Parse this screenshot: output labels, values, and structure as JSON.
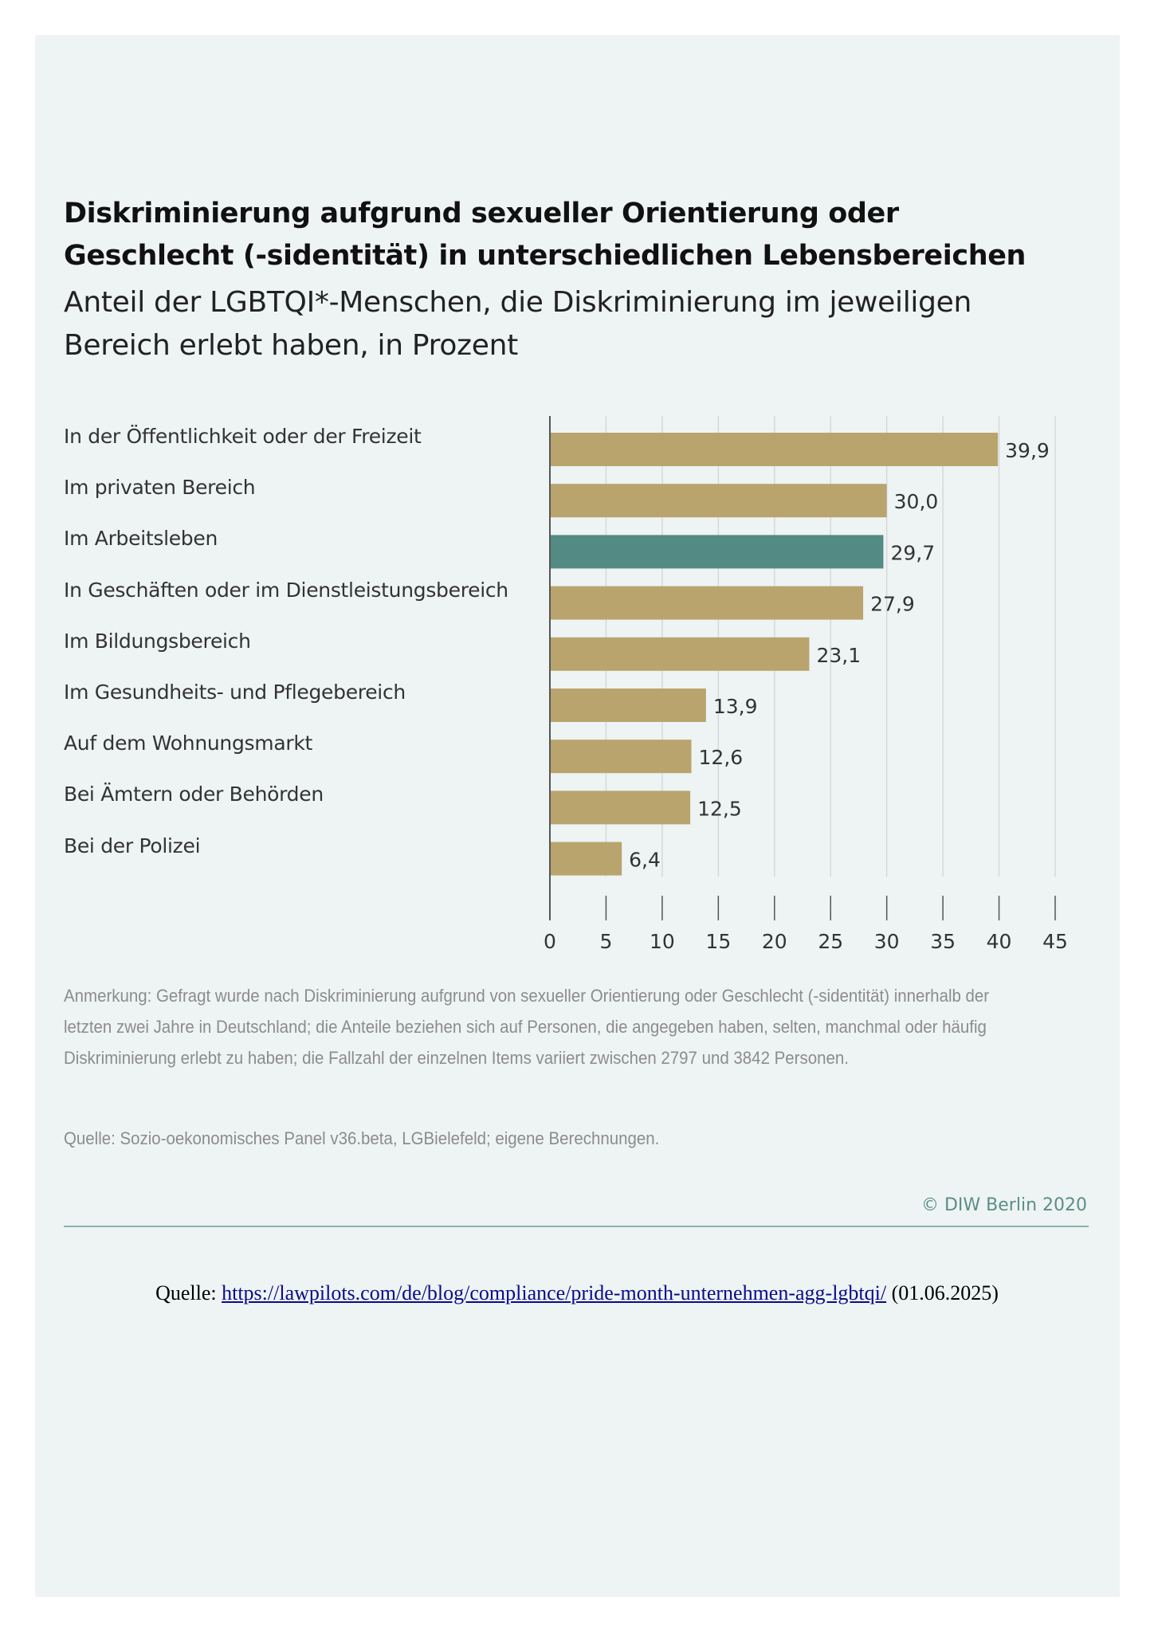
{
  "header": {
    "title_line1": "Diskriminierung aufgrund sexueller Orientierung oder",
    "title_line2": "Geschlecht (-sidentität) in unterschiedlichen Lebensbereichen",
    "subtitle_line1": "Anteil der LGBTQI*-Menschen, die Diskriminierung im jeweiligen",
    "subtitle_line2": "Bereich erlebt haben, in Prozent"
  },
  "colors": {
    "bar_default": "#b9a46e",
    "bar_highlight": "#548a84",
    "gridline": "#d5d9da",
    "axis": "#555555",
    "panel_background": "#eef3f4",
    "brand_text": "#5b8f87"
  },
  "chart_data": {
    "type": "bar",
    "orientation": "horizontal",
    "title": "Diskriminierung aufgrund sexueller Orientierung oder Geschlecht (-sidentität) in unterschiedlichen Lebensbereichen",
    "subtitle": "Anteil der LGBTQI*-Menschen, die Diskriminierung im jeweiligen Bereich erlebt haben, in Prozent",
    "categories": [
      "In der Öffentlichkeit oder der Freizeit",
      "Im privaten Bereich",
      "Im Arbeitsleben",
      "In Geschäften oder im Dienstleistungsbereich",
      "Im Bildungsbereich",
      "Im Gesundheits- und Pflegebereich",
      "Auf dem Wohnungsmarkt",
      "Bei Ämtern oder Behörden",
      "Bei der Polizei"
    ],
    "values": [
      39.9,
      30.0,
      29.7,
      27.9,
      23.1,
      13.9,
      12.6,
      12.5,
      6.4
    ],
    "value_labels": [
      "39,9",
      "30,0",
      "29,7",
      "27,9",
      "23,1",
      "13,9",
      "12,6",
      "12,5",
      "6,4"
    ],
    "highlight_index": 2,
    "xlabel": "",
    "ylabel": "",
    "xlim": [
      0,
      45
    ],
    "xticks": [
      0,
      5,
      10,
      15,
      20,
      25,
      30,
      35,
      40,
      45
    ],
    "xtick_labels": [
      "0",
      "5",
      "10",
      "15",
      "20",
      "25",
      "30",
      "35",
      "40",
      "45"
    ],
    "grid": true,
    "legend": "none"
  },
  "footer": {
    "note": "Anmerkung: Gefragt wurde nach Diskriminierung aufgrund von sexueller Orientierung oder Geschlecht (-sidentität) innerhalb der letzten zwei Jahre in Deutschland; die Anteile beziehen sich auf Personen, die angegeben haben, selten, manchmal oder häufig Diskriminierung erlebt zu haben; die Fallzahl der einzelnen Items variiert zwischen 2797 und 3842 Personen.",
    "source": "Quelle: Sozio-oekonomisches Panel v36.beta, LGBielefeld; eigene Berechnungen.",
    "copyright": "© DIW Berlin 2020"
  },
  "page_source": {
    "prefix": "Quelle: ",
    "link_text": "https://lawpilots.com/de/blog/compliance/pride-month-unternehmen-agg-lgbtqi/",
    "suffix": " (01.06.2025)"
  }
}
